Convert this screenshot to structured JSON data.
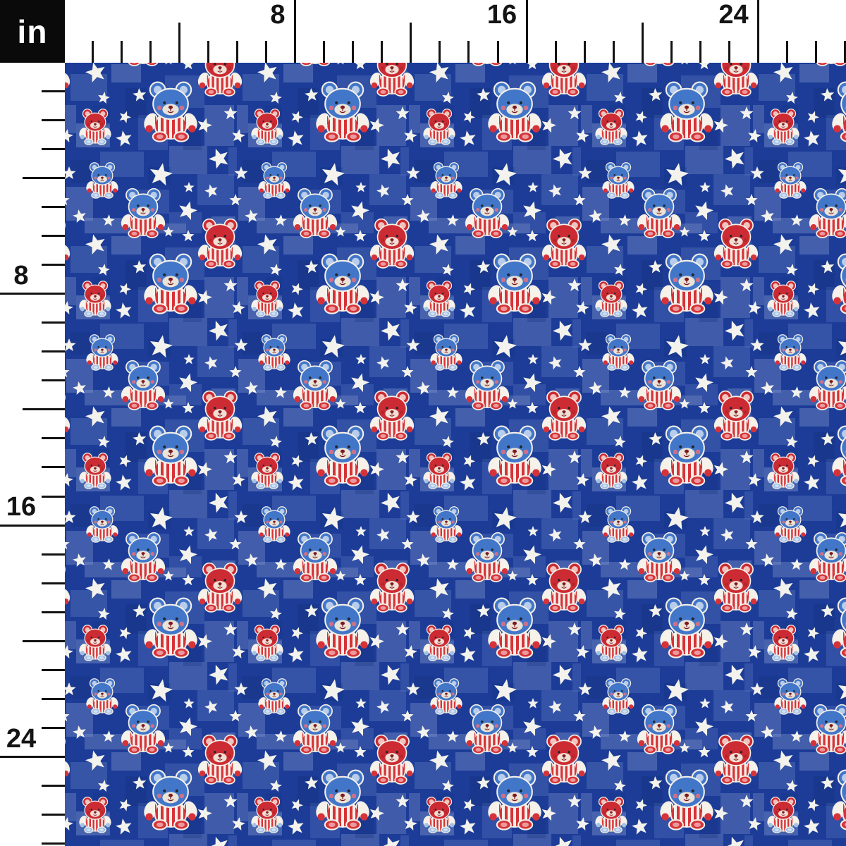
{
  "ruler": {
    "unit": "in",
    "top_labels": [
      "8",
      "16",
      "24"
    ],
    "left_labels": [
      "8",
      "16",
      "24"
    ],
    "label_values": [
      8,
      16,
      24
    ],
    "max_inches": 27,
    "major_every": 8,
    "mid_every": 4
  },
  "fabric": {
    "name": "Patriotic teddy bears and stars fabric swatch",
    "motifs": [
      "large-blue-teddy-bear",
      "medium-blue-teddy-bear",
      "small-blue-teddy-bear",
      "medium-red-teddy-bear",
      "small-red-teddy-bear",
      "white-star"
    ],
    "colors": {
      "background_blue": "#1c3c98",
      "texture_light": "#5a76bd",
      "texture_lighter": "#8fa2d3",
      "texture_dark": "#122d74",
      "star_white": "#f3f2ec",
      "stripe_red": "#d63339",
      "red_head": "#cc2b33",
      "blue_head": "#4276c9",
      "body_white": "#f6f2ea",
      "feet_blue": "#a3c2e6",
      "outline_white": "#f3f0e8"
    }
  }
}
